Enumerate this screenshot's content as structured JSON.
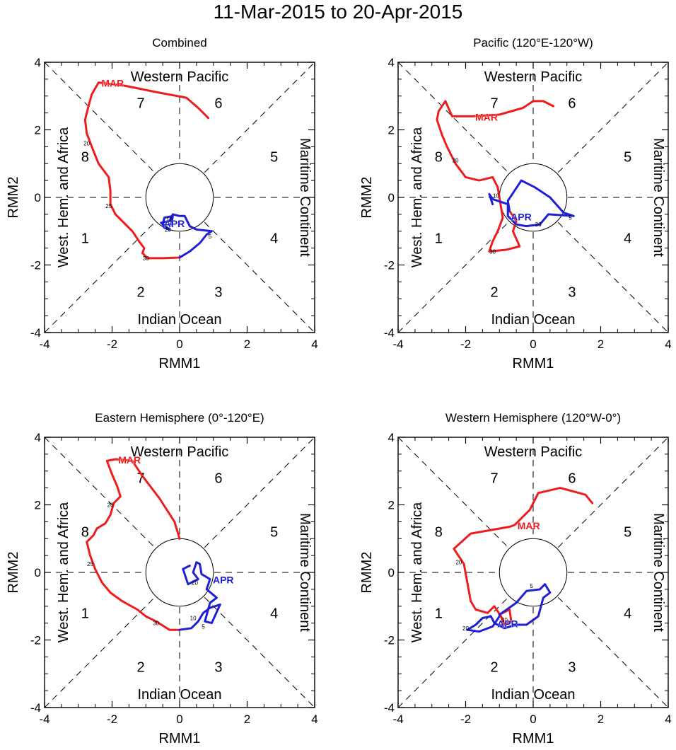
{
  "title": "11-Mar-2015 to 20-Apr-2015",
  "colors": {
    "march": "#ee1c1c",
    "april": "#1f1fd6",
    "axis": "#000000"
  },
  "common": {
    "xlabel": "RMM1",
    "ylabel": "RMM2",
    "ticks": [
      "-4",
      "-2",
      "0",
      "2",
      "4"
    ],
    "regions": {
      "top": "Western Pacific",
      "bottom": "Indian Ocean",
      "left": "West. Hem. and Africa",
      "right": "Maritime Continent"
    },
    "phases": [
      "1",
      "2",
      "3",
      "4",
      "5",
      "6",
      "7",
      "8"
    ]
  },
  "chart_data": [
    {
      "type": "line",
      "title": "Combined",
      "xlim": [
        -4,
        4
      ],
      "ylim": [
        -4,
        4
      ],
      "series": [
        {
          "name": "MAR",
          "month_label": "MAR",
          "color": "#ee1c1c",
          "points": [
            [
              0.85,
              2.35
            ],
            [
              0.55,
              2.65
            ],
            [
              0.2,
              2.95
            ],
            [
              -0.6,
              3.1
            ],
            [
              -1.6,
              3.3
            ],
            [
              -2.4,
              3.4
            ],
            [
              -2.6,
              3.05
            ],
            [
              -2.7,
              2.7
            ],
            [
              -2.8,
              2.3
            ],
            [
              -2.75,
              1.9
            ],
            [
              -2.6,
              1.5
            ],
            [
              -2.4,
              1.0
            ],
            [
              -2.1,
              0.6
            ],
            [
              -2.05,
              0.2
            ],
            [
              -2.05,
              -0.2
            ],
            [
              -1.9,
              -0.5
            ],
            [
              -1.65,
              -0.75
            ],
            [
              -1.4,
              -1.0
            ],
            [
              -1.2,
              -1.3
            ],
            [
              -1.05,
              -1.5
            ],
            [
              -1.1,
              -1.65
            ],
            [
              -0.95,
              -1.8
            ],
            [
              -0.5,
              -1.8
            ],
            [
              0.0,
              -1.78
            ]
          ],
          "day_labels": [
            {
              "text": "20",
              "x": -2.75,
              "y": 1.6
            },
            {
              "text": "25",
              "x": -2.1,
              "y": -0.25
            },
            {
              "text": "30",
              "x": -1.0,
              "y": -1.8
            }
          ]
        },
        {
          "name": "APR",
          "month_label": "APR",
          "color": "#1f1fd6",
          "points": [
            [
              0.0,
              -1.78
            ],
            [
              0.3,
              -1.6
            ],
            [
              0.6,
              -1.35
            ],
            [
              0.8,
              -1.1
            ],
            [
              0.95,
              -1.0
            ],
            [
              0.5,
              -0.95
            ],
            [
              0.3,
              -0.85
            ],
            [
              0.15,
              -0.55
            ],
            [
              0.0,
              -0.55
            ],
            [
              -0.2,
              -0.5
            ],
            [
              -0.3,
              -0.7
            ],
            [
              -0.55,
              -0.75
            ],
            [
              -0.3,
              -0.95
            ],
            [
              -0.45,
              -0.9
            ],
            [
              -0.5,
              -0.8
            ],
            [
              -0.45,
              -0.6
            ],
            [
              -0.2,
              -0.55
            ],
            [
              -0.25,
              -0.8
            ]
          ],
          "day_labels": [
            {
              "text": "5",
              "x": 0.9,
              "y": -1.15
            },
            {
              "text": "10",
              "x": -0.3,
              "y": -0.65
            },
            {
              "text": "20",
              "x": -0.35,
              "y": -0.95
            }
          ]
        }
      ]
    },
    {
      "type": "line",
      "title": "Pacific (120°E-120°W)",
      "xlim": [
        -4,
        4
      ],
      "ylim": [
        -4,
        4
      ],
      "series": [
        {
          "name": "MAR",
          "month_label": "MAR",
          "color": "#ee1c1c",
          "points": [
            [
              0.6,
              2.7
            ],
            [
              0.3,
              2.85
            ],
            [
              0.0,
              2.85
            ],
            [
              -0.3,
              2.65
            ],
            [
              -1.0,
              2.45
            ],
            [
              -1.8,
              2.4
            ],
            [
              -2.4,
              2.4
            ],
            [
              -2.6,
              2.85
            ],
            [
              -2.8,
              2.55
            ],
            [
              -2.85,
              2.3
            ],
            [
              -2.7,
              1.85
            ],
            [
              -2.55,
              1.5
            ],
            [
              -2.3,
              1.0
            ],
            [
              -2.0,
              0.6
            ],
            [
              -1.6,
              0.5
            ],
            [
              -1.2,
              0.6
            ],
            [
              -1.05,
              0.3
            ],
            [
              -1.0,
              0.0
            ],
            [
              -0.95,
              -0.3
            ],
            [
              -0.9,
              -0.6
            ],
            [
              -1.05,
              -1.0
            ],
            [
              -1.2,
              -1.3
            ],
            [
              -1.3,
              -1.6
            ],
            [
              -0.8,
              -1.55
            ],
            [
              -0.4,
              -1.45
            ],
            [
              -0.6,
              -1.0
            ],
            [
              -0.5,
              -0.7
            ],
            [
              -0.7,
              -0.4
            ]
          ],
          "day_labels": [
            {
              "text": "20",
              "x": -2.3,
              "y": 1.1
            },
            {
              "text": "30",
              "x": -1.2,
              "y": -1.6
            }
          ]
        },
        {
          "name": "APR",
          "month_label": "APR",
          "color": "#1f1fd6",
          "points": [
            [
              -0.7,
              -0.4
            ],
            [
              -0.75,
              -0.1
            ],
            [
              -0.35,
              0.5
            ],
            [
              0.05,
              0.3
            ],
            [
              0.5,
              0.0
            ],
            [
              0.9,
              -0.45
            ],
            [
              1.2,
              -0.55
            ],
            [
              0.45,
              -0.5
            ],
            [
              0.2,
              -0.8
            ],
            [
              -0.2,
              -0.85
            ],
            [
              -0.5,
              -0.8
            ],
            [
              -0.75,
              -0.55
            ],
            [
              -0.75,
              -0.2
            ],
            [
              -1.2,
              -0.05
            ],
            [
              -1.3,
              0.1
            ],
            [
              -1.2,
              -0.2
            ]
          ],
          "day_labels": [
            {
              "text": "5",
              "x": 1.1,
              "y": -0.6
            },
            {
              "text": "10",
              "x": -1.1,
              "y": 0.05
            },
            {
              "text": "20",
              "x": 0.15,
              "y": -0.8
            }
          ]
        }
      ]
    },
    {
      "type": "line",
      "title": "Eastern Hemisphere (0°-120°E)",
      "xlim": [
        -4,
        4
      ],
      "ylim": [
        -4,
        4
      ],
      "series": [
        {
          "name": "MAR",
          "month_label": "MAR",
          "color": "#ee1c1c",
          "points": [
            [
              0.0,
              1.0
            ],
            [
              -0.15,
              1.5
            ],
            [
              -0.6,
              2.2
            ],
            [
              -1.1,
              2.85
            ],
            [
              -1.4,
              3.3
            ],
            [
              -1.9,
              3.35
            ],
            [
              -2.15,
              3.3
            ],
            [
              -2.0,
              2.9
            ],
            [
              -1.85,
              2.55
            ],
            [
              -1.75,
              2.25
            ],
            [
              -1.95,
              2.05
            ],
            [
              -2.05,
              1.7
            ],
            [
              -2.2,
              1.45
            ],
            [
              -2.45,
              1.3
            ],
            [
              -2.55,
              1.1
            ],
            [
              -2.75,
              0.9
            ],
            [
              -2.65,
              0.5
            ],
            [
              -2.5,
              0.1
            ],
            [
              -2.3,
              -0.3
            ],
            [
              -2.05,
              -0.6
            ],
            [
              -1.7,
              -0.85
            ],
            [
              -1.25,
              -1.1
            ],
            [
              -1.0,
              -1.3
            ],
            [
              -0.7,
              -1.45
            ],
            [
              -0.3,
              -1.7
            ],
            [
              0.0,
              -1.7
            ]
          ],
          "day_labels": [
            {
              "text": "20",
              "x": -2.05,
              "y": 2.0
            },
            {
              "text": "25",
              "x": -2.65,
              "y": 0.25
            },
            {
              "text": "30",
              "x": -0.7,
              "y": -1.5
            }
          ]
        },
        {
          "name": "APR",
          "month_label": "APR",
          "color": "#1f1fd6",
          "points": [
            [
              0.0,
              -1.7
            ],
            [
              0.35,
              -1.65
            ],
            [
              0.55,
              -1.45
            ],
            [
              0.7,
              -1.2
            ],
            [
              0.9,
              -1.05
            ],
            [
              1.2,
              -0.95
            ],
            [
              0.95,
              -1.5
            ],
            [
              0.75,
              -1.45
            ],
            [
              0.9,
              -0.9
            ],
            [
              1.1,
              -0.75
            ],
            [
              0.8,
              -0.5
            ],
            [
              0.9,
              -0.2
            ],
            [
              0.65,
              -0.05
            ],
            [
              0.6,
              0.25
            ],
            [
              0.5,
              0.3
            ],
            [
              0.4,
              0.0
            ],
            [
              0.55,
              -0.2
            ],
            [
              0.25,
              -0.35
            ],
            [
              0.1,
              0.1
            ],
            [
              0.3,
              0.2
            ]
          ],
          "day_labels": [
            {
              "text": "5",
              "x": 0.7,
              "y": -1.6
            },
            {
              "text": "10",
              "x": 0.4,
              "y": -1.35
            },
            {
              "text": "20",
              "x": 0.45,
              "y": -0.3
            }
          ]
        }
      ]
    },
    {
      "type": "line",
      "title": "Western Hemisphere (120°W-0°)",
      "xlim": [
        -4,
        4
      ],
      "ylim": [
        -4,
        4
      ],
      "series": [
        {
          "name": "MAR",
          "month_label": "MAR",
          "color": "#ee1c1c",
          "points": [
            [
              1.75,
              2.05
            ],
            [
              1.55,
              2.3
            ],
            [
              0.8,
              2.5
            ],
            [
              0.15,
              2.35
            ],
            [
              -0.1,
              1.85
            ],
            [
              -0.55,
              1.4
            ],
            [
              -0.7,
              1.35
            ],
            [
              -1.85,
              1.15
            ],
            [
              -2.35,
              0.7
            ],
            [
              -2.05,
              0.25
            ],
            [
              -1.95,
              -0.3
            ],
            [
              -1.85,
              -0.85
            ],
            [
              -1.7,
              -1.1
            ],
            [
              -1.35,
              -1.2
            ],
            [
              -1.15,
              -1.0
            ],
            [
              -0.95,
              -1.3
            ],
            [
              -0.85,
              -1.55
            ],
            [
              -0.65,
              -1.45
            ],
            [
              -0.7,
              -1.1
            ],
            [
              -1.0,
              -1.25
            ]
          ],
          "day_labels": [
            {
              "text": "20",
              "x": -2.2,
              "y": 0.3
            },
            {
              "text": "30",
              "x": -0.85,
              "y": -1.4
            }
          ]
        },
        {
          "name": "APR",
          "month_label": "APR",
          "color": "#1f1fd6",
          "points": [
            [
              -1.0,
              -1.25
            ],
            [
              -0.5,
              -0.9
            ],
            [
              -0.2,
              -0.55
            ],
            [
              0.2,
              -0.5
            ],
            [
              0.35,
              -0.35
            ],
            [
              0.5,
              -0.6
            ],
            [
              0.3,
              -0.75
            ],
            [
              0.15,
              -1.3
            ],
            [
              -0.2,
              -1.55
            ],
            [
              -0.5,
              -1.55
            ],
            [
              -0.85,
              -1.65
            ],
            [
              -1.15,
              -1.5
            ],
            [
              -1.25,
              -1.3
            ],
            [
              -1.5,
              -1.35
            ],
            [
              -1.7,
              -1.55
            ],
            [
              -1.95,
              -1.7
            ],
            [
              -1.6,
              -1.75
            ],
            [
              -1.2,
              -1.6
            ],
            [
              -1.0,
              -1.3
            ]
          ],
          "day_labels": [
            {
              "text": "5",
              "x": -0.05,
              "y": -0.4
            },
            {
              "text": "20",
              "x": -2.0,
              "y": -1.65
            }
          ]
        }
      ]
    }
  ]
}
